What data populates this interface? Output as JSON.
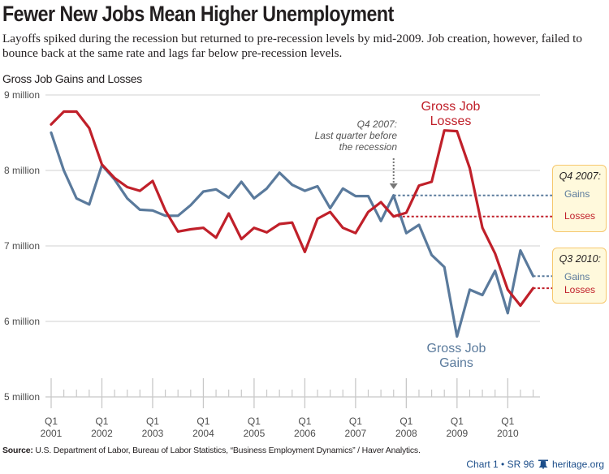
{
  "title": "Fewer New Jobs Mean Higher Unemployment",
  "subtitle": "Layoffs spiked during the recession but returned to pre-recession levels by mid-2009. Job creation, however, failed to bounce back at the same rate and lags far below pre-recession levels.",
  "chart_title": "Gross Job Gains and Losses",
  "colors": {
    "gains": "#5a7a9c",
    "losses": "#c0202a",
    "grid": "#d9d9d9",
    "box_fill": "#fff9dc",
    "box_border": "#f6c86e",
    "credit": "#1c4e8a"
  },
  "chart_data": {
    "type": "line",
    "title": "Gross Job Gains and Losses",
    "xlabel": "",
    "ylabel": "",
    "ylim": [
      5,
      9
    ],
    "y_unit": "million",
    "yticks": [
      {
        "value": 9,
        "label": "9 million"
      },
      {
        "value": 8,
        "label": "8 million"
      },
      {
        "value": 7,
        "label": "7 million"
      },
      {
        "value": 6,
        "label": "6 million"
      },
      {
        "value": 5,
        "label": "5 million"
      }
    ],
    "xticks": [
      {
        "q": "Q1",
        "year": "2001"
      },
      {
        "q": "Q1",
        "year": "2002"
      },
      {
        "q": "Q1",
        "year": "2003"
      },
      {
        "q": "Q1",
        "year": "2004"
      },
      {
        "q": "Q1",
        "year": "2005"
      },
      {
        "q": "Q1",
        "year": "2006"
      },
      {
        "q": "Q1",
        "year": "2007"
      },
      {
        "q": "Q1",
        "year": "2008"
      },
      {
        "q": "Q1",
        "year": "2009"
      },
      {
        "q": "Q1",
        "year": "2010"
      }
    ],
    "x_start": "Q1 2001",
    "x_end": "Q3 2010",
    "grid": true,
    "series": [
      {
        "name": "Gross Job Losses",
        "label_lines": [
          "Gross Job",
          "Losses"
        ],
        "values": [
          8.61,
          8.78,
          8.78,
          8.56,
          8.08,
          7.9,
          7.78,
          7.73,
          7.86,
          7.47,
          7.19,
          7.22,
          7.24,
          7.11,
          7.43,
          7.09,
          7.24,
          7.18,
          7.29,
          7.31,
          6.92,
          7.36,
          7.45,
          7.24,
          7.17,
          7.45,
          7.58,
          7.39,
          7.44,
          7.8,
          7.85,
          8.53,
          8.52,
          8.03,
          7.24,
          6.9,
          6.42,
          6.21,
          6.44
        ]
      },
      {
        "name": "Gross Job Gains",
        "label_lines": [
          "Gross Job",
          "Gains"
        ],
        "values": [
          8.5,
          8.0,
          7.63,
          7.55,
          8.07,
          7.88,
          7.63,
          7.48,
          7.47,
          7.4,
          7.4,
          7.54,
          7.72,
          7.75,
          7.64,
          7.85,
          7.63,
          7.76,
          7.97,
          7.81,
          7.73,
          7.79,
          7.5,
          7.76,
          7.66,
          7.66,
          7.33,
          7.67,
          7.17,
          7.28,
          6.88,
          6.72,
          5.8,
          6.42,
          6.35,
          6.67,
          6.11,
          6.94,
          6.6
        ]
      }
    ],
    "annotations": {
      "recession": {
        "lines": [
          "Q4 2007:",
          "Last quarter before",
          "the recession"
        ],
        "index": 27
      },
      "q4_2007_box": {
        "title": "Q4 2007:",
        "gains": "Gains",
        "losses": "Losses",
        "index": 27
      },
      "q3_2010_box": {
        "title": "Q3 2010:",
        "gains": "Gains",
        "losses": "Losses",
        "index": 38
      }
    }
  },
  "source_label": "Source:",
  "source_text": " U.S. Department of Labor, Bureau of Labor Statistics, “Business Employment Dynamics” / Haver Analytics.",
  "credit": {
    "chart": "Chart 1 • SR 96",
    "icon": "liberty-bell-icon",
    "site": "heritage.org"
  }
}
